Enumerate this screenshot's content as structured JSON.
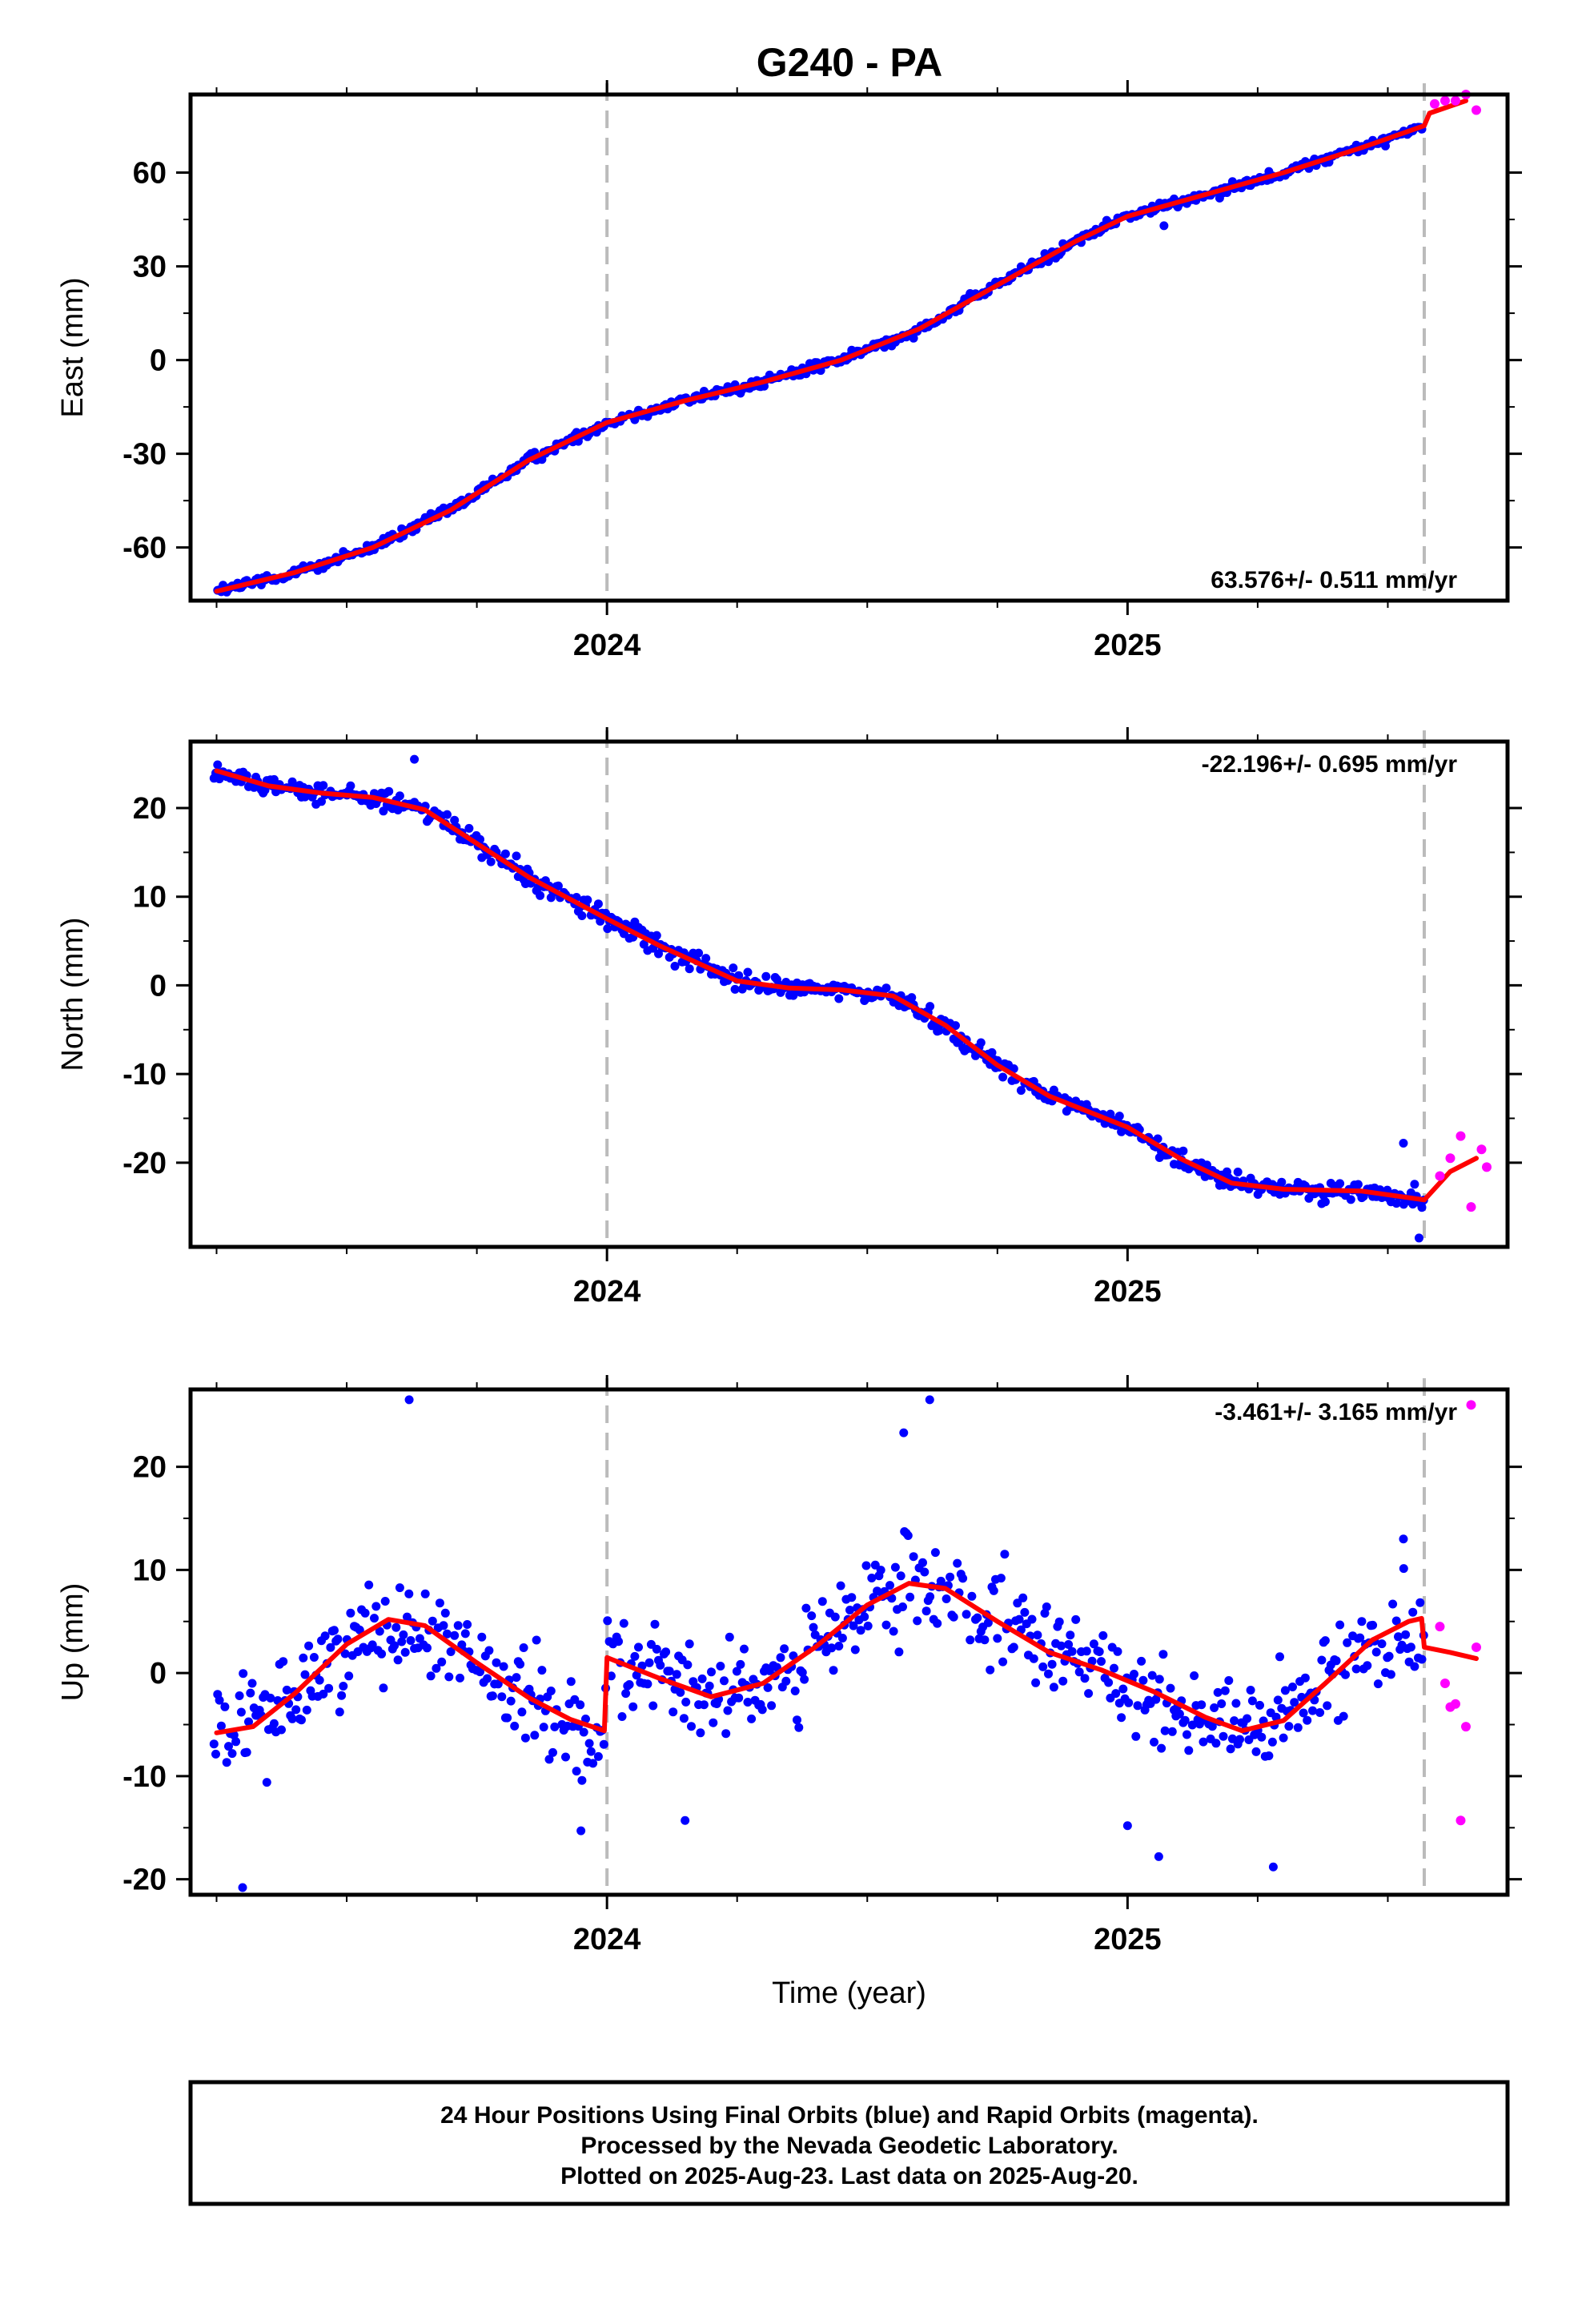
{
  "title": "G240 - PA",
  "footer": {
    "line1": "24 Hour Positions Using Final Orbits (blue) and Rapid Orbits (magenta).",
    "line2": "Processed by the Nevada Geodetic Laboratory.",
    "line3": "Plotted on 2025-Aug-23. Last data on 2025-Aug-20."
  },
  "colors": {
    "final": "#0000ff",
    "rapid": "#ff00ff",
    "model": "#ff0000",
    "marker": "#bbbbbb"
  },
  "chart_data": [
    {
      "type": "scatter",
      "ylabel": "East (mm)",
      "xlabel": "",
      "xlim": [
        2023.2,
        2025.73
      ],
      "ylim": [
        -77,
        85
      ],
      "x_ticks": [
        2024,
        2025
      ],
      "y_ticks": [
        -60,
        -30,
        0,
        30,
        60
      ],
      "rate_label": "63.576+/- 0.511 mm/yr",
      "rate_position": "bottom-right",
      "event_lines": [
        2024.0,
        2025.57
      ],
      "grid": false,
      "model_line": [
        [
          2023.25,
          -74
        ],
        [
          2023.4,
          -68
        ],
        [
          2023.55,
          -60
        ],
        [
          2023.7,
          -48
        ],
        [
          2023.85,
          -32
        ],
        [
          2024.0,
          -20
        ],
        [
          2024.15,
          -13
        ],
        [
          2024.3,
          -7
        ],
        [
          2024.45,
          0
        ],
        [
          2024.6,
          10
        ],
        [
          2024.75,
          24
        ],
        [
          2024.9,
          38
        ],
        [
          2025.0,
          46
        ],
        [
          2025.15,
          53
        ],
        [
          2025.3,
          60
        ],
        [
          2025.45,
          68
        ],
        [
          2025.57,
          75
        ],
        [
          2025.58,
          79
        ],
        [
          2025.65,
          83
        ]
      ],
      "rapid_points": [
        [
          2025.59,
          82
        ],
        [
          2025.61,
          83
        ],
        [
          2025.63,
          83
        ],
        [
          2025.65,
          85
        ],
        [
          2025.67,
          80
        ]
      ],
      "noise_amplitude": 1.5,
      "outliers": [
        [
          2025.07,
          43
        ]
      ]
    },
    {
      "type": "scatter",
      "ylabel": "North (mm)",
      "xlabel": "",
      "xlim": [
        2023.2,
        2025.73
      ],
      "ylim": [
        -29.5,
        27.5
      ],
      "x_ticks": [
        2024,
        2025
      ],
      "y_ticks": [
        -20,
        -10,
        0,
        10,
        20
      ],
      "rate_label": "-22.196+/- 0.695 mm/yr",
      "rate_position": "top-right",
      "event_lines": [
        2024.0,
        2025.57
      ],
      "grid": false,
      "model_line": [
        [
          2023.25,
          24.2
        ],
        [
          2023.35,
          22.5
        ],
        [
          2023.45,
          21.7
        ],
        [
          2023.55,
          21.2
        ],
        [
          2023.65,
          19.8
        ],
        [
          2023.75,
          16.0
        ],
        [
          2023.85,
          12.2
        ],
        [
          2024.0,
          7.5
        ],
        [
          2024.1,
          4.5
        ],
        [
          2024.25,
          0.5
        ],
        [
          2024.35,
          -0.3
        ],
        [
          2024.45,
          -0.5
        ],
        [
          2024.55,
          -1.2
        ],
        [
          2024.65,
          -4.5
        ],
        [
          2024.75,
          -9.0
        ],
        [
          2024.85,
          -12.5
        ],
        [
          2025.0,
          -16.0
        ],
        [
          2025.1,
          -19.5
        ],
        [
          2025.2,
          -22.3
        ],
        [
          2025.3,
          -23.0
        ],
        [
          2025.45,
          -23.2
        ],
        [
          2025.57,
          -24.2
        ],
        [
          2025.62,
          -21.0
        ],
        [
          2025.67,
          -19.5
        ]
      ],
      "rapid_points": [
        [
          2025.6,
          -21.5
        ],
        [
          2025.62,
          -19.5
        ],
        [
          2025.64,
          -17.0
        ],
        [
          2025.66,
          -25.0
        ],
        [
          2025.68,
          -18.5
        ],
        [
          2025.69,
          -20.5
        ]
      ],
      "noise_amplitude": 1.0,
      "outliers": [
        [
          2023.63,
          25.5
        ],
        [
          2025.53,
          -17.8
        ],
        [
          2025.56,
          -28.5
        ]
      ]
    },
    {
      "type": "scatter",
      "ylabel": "Up (mm)",
      "xlabel": "Time (year)",
      "xlim": [
        2023.2,
        2025.73
      ],
      "ylim": [
        -21.5,
        27.5
      ],
      "x_ticks": [
        2024,
        2025
      ],
      "y_ticks": [
        -20,
        -10,
        0,
        10,
        20
      ],
      "rate_label": "-3.461+/- 3.165 mm/yr",
      "rate_position": "top-right",
      "event_lines": [
        2024.0,
        2025.57
      ],
      "grid": false,
      "model_line": [
        [
          2023.25,
          -5.8
        ],
        [
          2023.32,
          -5.2
        ],
        [
          2023.4,
          -2.0
        ],
        [
          2023.5,
          2.8
        ],
        [
          2023.58,
          5.2
        ],
        [
          2023.65,
          4.6
        ],
        [
          2023.75,
          1.0
        ],
        [
          2023.85,
          -2.4
        ],
        [
          2023.93,
          -4.5
        ],
        [
          2023.995,
          -5.6
        ],
        [
          2024.0,
          1.5
        ],
        [
          2024.1,
          -0.5
        ],
        [
          2024.2,
          -2.3
        ],
        [
          2024.3,
          -1.0
        ],
        [
          2024.4,
          2.5
        ],
        [
          2024.5,
          6.6
        ],
        [
          2024.58,
          8.7
        ],
        [
          2024.65,
          8.2
        ],
        [
          2024.75,
          5.0
        ],
        [
          2024.85,
          2.0
        ],
        [
          2024.95,
          0.3
        ],
        [
          2025.05,
          -1.8
        ],
        [
          2025.15,
          -4.3
        ],
        [
          2025.22,
          -5.6
        ],
        [
          2025.3,
          -4.6
        ],
        [
          2025.38,
          -1.0
        ],
        [
          2025.47,
          3.2
        ],
        [
          2025.54,
          5.0
        ],
        [
          2025.565,
          5.3
        ],
        [
          2025.57,
          2.5
        ],
        [
          2025.62,
          2.0
        ],
        [
          2025.67,
          1.4
        ]
      ],
      "rapid_points": [
        [
          2025.6,
          4.5
        ],
        [
          2025.61,
          -1.0
        ],
        [
          2025.62,
          -3.3
        ],
        [
          2025.63,
          -3.0
        ],
        [
          2025.64,
          -14.3
        ],
        [
          2025.65,
          -5.2
        ],
        [
          2025.66,
          26.0
        ],
        [
          2025.67,
          2.5
        ]
      ],
      "noise_amplitude": 4.2,
      "outliers": [
        [
          2023.3,
          -20.8
        ],
        [
          2023.62,
          26.5
        ],
        [
          2024.62,
          26.5
        ],
        [
          2024.57,
          23.3
        ],
        [
          2023.95,
          -15.3
        ],
        [
          2024.15,
          -14.3
        ],
        [
          2025.0,
          -14.8
        ],
        [
          2025.06,
          -17.8
        ],
        [
          2025.28,
          -18.8
        ],
        [
          2025.53,
          13.0
        ]
      ]
    }
  ]
}
